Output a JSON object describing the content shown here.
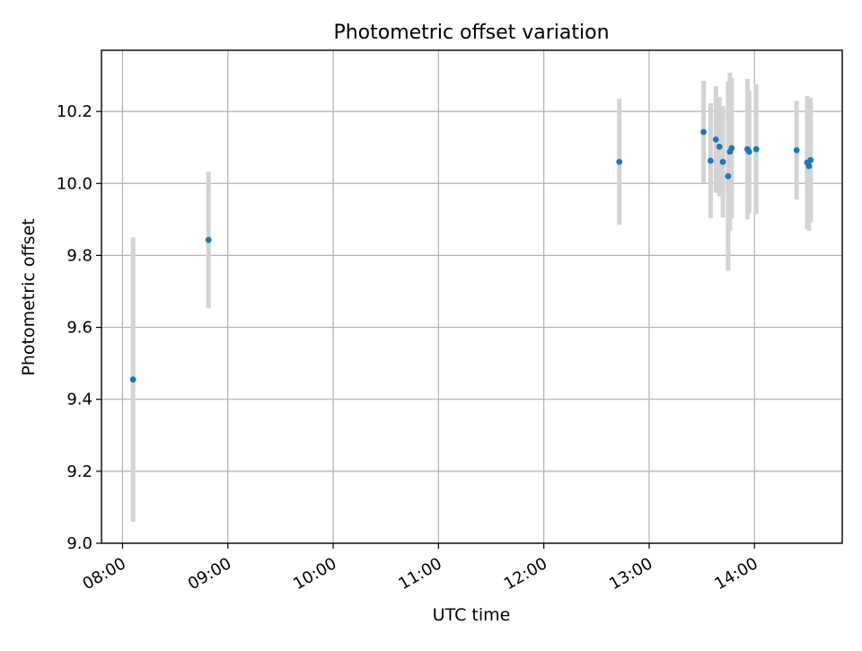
{
  "chart_data": {
    "type": "scatter",
    "title": "Photometric offset variation",
    "xlabel": "UTC time",
    "ylabel": "Photometric offset",
    "x_ticks": [
      "08:00",
      "09:00",
      "10:00",
      "11:00",
      "12:00",
      "13:00",
      "14:00"
    ],
    "xlim": [
      "07:48",
      "14:50"
    ],
    "ylim": [
      9.0,
      10.37
    ],
    "y_ticks": [
      9.0,
      9.2,
      9.4,
      9.6,
      9.8,
      10.0,
      10.2
    ],
    "y_tick_labels": [
      "9.0",
      "9.2",
      "9.4",
      "9.6",
      "9.8",
      "10.0",
      "10.2"
    ],
    "grid": true,
    "point_color": "#1f77b4",
    "errorbar_color": "#d3d3d3",
    "points": [
      {
        "x": "08:06",
        "y": 9.455,
        "err": 0.395
      },
      {
        "x": "08:49",
        "y": 9.843,
        "err": 0.19
      },
      {
        "x": "12:43",
        "y": 10.06,
        "err": 0.175
      },
      {
        "x": "13:31",
        "y": 10.143,
        "err": 0.142
      },
      {
        "x": "13:35",
        "y": 10.063,
        "err": 0.16
      },
      {
        "x": "13:38",
        "y": 10.122,
        "err": 0.148
      },
      {
        "x": "13:40",
        "y": 10.102,
        "err": 0.138
      },
      {
        "x": "13:42",
        "y": 10.06,
        "err": 0.155
      },
      {
        "x": "13:45",
        "y": 10.02,
        "err": 0.263
      },
      {
        "x": "13:46",
        "y": 10.088,
        "err": 0.22
      },
      {
        "x": "13:47",
        "y": 10.098,
        "err": 0.195
      },
      {
        "x": "13:56",
        "y": 10.095,
        "err": 0.195
      },
      {
        "x": "13:57",
        "y": 10.088,
        "err": 0.17
      },
      {
        "x": "14:01",
        "y": 10.095,
        "err": 0.18
      },
      {
        "x": "14:24",
        "y": 10.092,
        "err": 0.137
      },
      {
        "x": "14:30",
        "y": 10.058,
        "err": 0.185
      },
      {
        "x": "14:31",
        "y": 10.048,
        "err": 0.18
      },
      {
        "x": "14:32",
        "y": 10.065,
        "err": 0.173
      }
    ]
  }
}
